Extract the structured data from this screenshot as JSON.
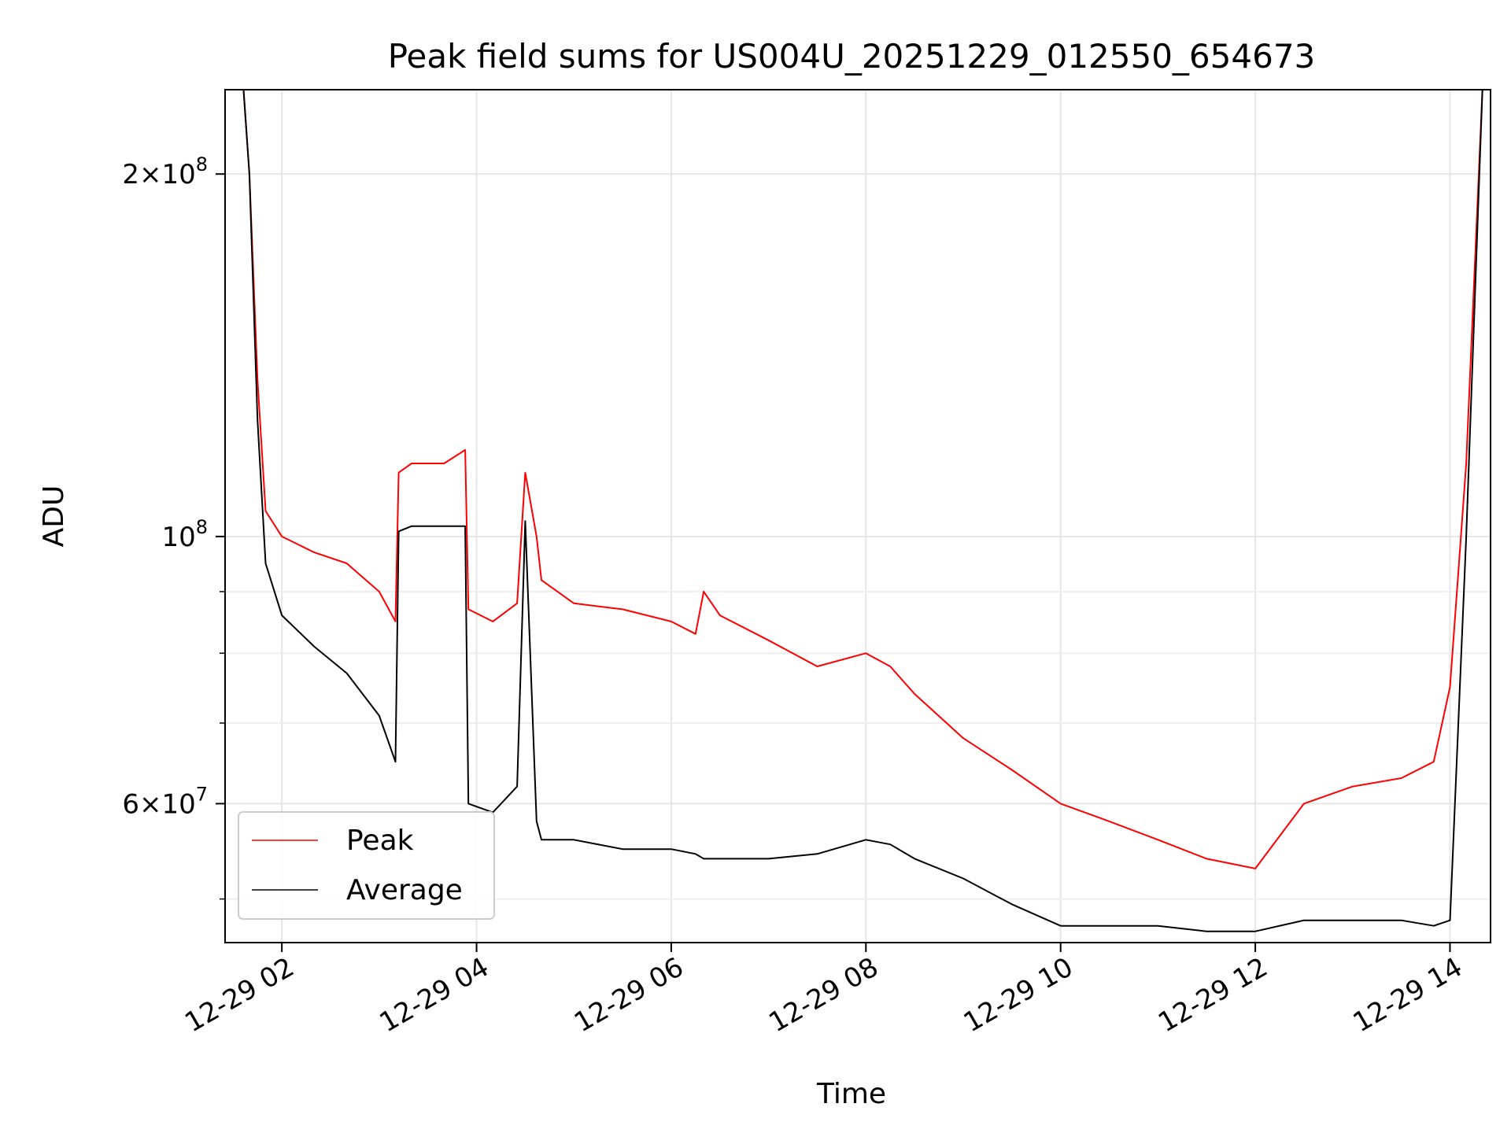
{
  "chart_data": {
    "type": "line",
    "title": "Peak field sums for US004U_20251229_012550_654673",
    "xlabel": "Time",
    "ylabel": "ADU",
    "y_scale": "log",
    "ylim": [
      46000000,
      235000000
    ],
    "xlim": [
      "2025-12-29T01:25:00",
      "2025-12-29T14:25:00"
    ],
    "grid": true,
    "legend_position": "lower-left",
    "x_ticks": [
      {
        "t": "2025-12-29T02:00:00",
        "label": "12-29 02"
      },
      {
        "t": "2025-12-29T04:00:00",
        "label": "12-29 04"
      },
      {
        "t": "2025-12-29T06:00:00",
        "label": "12-29 06"
      },
      {
        "t": "2025-12-29T08:00:00",
        "label": "12-29 08"
      },
      {
        "t": "2025-12-29T10:00:00",
        "label": "12-29 10"
      },
      {
        "t": "2025-12-29T12:00:00",
        "label": "12-29 12"
      },
      {
        "t": "2025-12-29T14:00:00",
        "label": "12-29 14"
      }
    ],
    "y_major_ticks": [
      {
        "v": 60000000,
        "mantissa": "6",
        "exp": "7"
      },
      {
        "v": 100000000,
        "mantissa": "",
        "exp": "8"
      },
      {
        "v": 200000000,
        "mantissa": "2",
        "exp": "8"
      }
    ],
    "y_minor_ticks": [
      50000000,
      70000000,
      80000000,
      90000000
    ],
    "series": [
      {
        "name": "Peak",
        "color": "#ff0000",
        "x": [
          "2025-12-29T01:35:00",
          "2025-12-29T01:40:00",
          "2025-12-29T01:45:00",
          "2025-12-29T01:50:00",
          "2025-12-29T02:00:00",
          "2025-12-29T02:20:00",
          "2025-12-29T02:40:00",
          "2025-12-29T03:00:00",
          "2025-12-29T03:10:00",
          "2025-12-29T03:12:00",
          "2025-12-29T03:20:00",
          "2025-12-29T03:40:00",
          "2025-12-29T03:53:00",
          "2025-12-29T03:55:00",
          "2025-12-29T04:10:00",
          "2025-12-29T04:25:00",
          "2025-12-29T04:30:00",
          "2025-12-29T04:37:00",
          "2025-12-29T04:40:00",
          "2025-12-29T05:00:00",
          "2025-12-29T05:30:00",
          "2025-12-29T06:00:00",
          "2025-12-29T06:15:00",
          "2025-12-29T06:20:00",
          "2025-12-29T06:30:00",
          "2025-12-29T07:00:00",
          "2025-12-29T07:30:00",
          "2025-12-29T08:00:00",
          "2025-12-29T08:15:00",
          "2025-12-29T08:30:00",
          "2025-12-29T09:00:00",
          "2025-12-29T09:30:00",
          "2025-12-29T10:00:00",
          "2025-12-29T10:30:00",
          "2025-12-29T11:00:00",
          "2025-12-29T11:30:00",
          "2025-12-29T12:00:00",
          "2025-12-29T12:30:00",
          "2025-12-29T13:00:00",
          "2025-12-29T13:30:00",
          "2025-12-29T13:50:00",
          "2025-12-29T14:00:00",
          "2025-12-29T14:10:00",
          "2025-12-29T14:20:00"
        ],
        "y": [
          250000000,
          200000000,
          135000000,
          105000000,
          100000000,
          97000000,
          95000000,
          90000000,
          85000000,
          113000000,
          115000000,
          115000000,
          118000000,
          87000000,
          85000000,
          88000000,
          113000000,
          100000000,
          92000000,
          88000000,
          87000000,
          85000000,
          83000000,
          90000000,
          86000000,
          82000000,
          78000000,
          80000000,
          78000000,
          74000000,
          68000000,
          64000000,
          60000000,
          58000000,
          56000000,
          54000000,
          53000000,
          60000000,
          62000000,
          63000000,
          65000000,
          75000000,
          115000000,
          235000000
        ]
      },
      {
        "name": "Average",
        "color": "#000000",
        "x": [
          "2025-12-29T01:35:00",
          "2025-12-29T01:40:00",
          "2025-12-29T01:45:00",
          "2025-12-29T01:50:00",
          "2025-12-29T02:00:00",
          "2025-12-29T02:20:00",
          "2025-12-29T02:40:00",
          "2025-12-29T03:00:00",
          "2025-12-29T03:10:00",
          "2025-12-29T03:12:00",
          "2025-12-29T03:20:00",
          "2025-12-29T03:40:00",
          "2025-12-29T03:53:00",
          "2025-12-29T03:55:00",
          "2025-12-29T04:10:00",
          "2025-12-29T04:25:00",
          "2025-12-29T04:30:00",
          "2025-12-29T04:37:00",
          "2025-12-29T04:40:00",
          "2025-12-29T05:00:00",
          "2025-12-29T05:30:00",
          "2025-12-29T06:00:00",
          "2025-12-29T06:15:00",
          "2025-12-29T06:20:00",
          "2025-12-29T06:30:00",
          "2025-12-29T07:00:00",
          "2025-12-29T07:30:00",
          "2025-12-29T08:00:00",
          "2025-12-29T08:15:00",
          "2025-12-29T08:30:00",
          "2025-12-29T09:00:00",
          "2025-12-29T09:30:00",
          "2025-12-29T10:00:00",
          "2025-12-29T10:30:00",
          "2025-12-29T11:00:00",
          "2025-12-29T11:30:00",
          "2025-12-29T12:00:00",
          "2025-12-29T12:30:00",
          "2025-12-29T13:00:00",
          "2025-12-29T13:30:00",
          "2025-12-29T13:50:00",
          "2025-12-29T14:00:00",
          "2025-12-29T14:10:00",
          "2025-12-29T14:20:00"
        ],
        "y": [
          250000000,
          200000000,
          125000000,
          95000000,
          86000000,
          81000000,
          77000000,
          71000000,
          65000000,
          101000000,
          102000000,
          102000000,
          102000000,
          60000000,
          59000000,
          62000000,
          103000000,
          58000000,
          56000000,
          56000000,
          55000000,
          55000000,
          54500000,
          54000000,
          54000000,
          54000000,
          54500000,
          56000000,
          55500000,
          54000000,
          52000000,
          49500000,
          47500000,
          47500000,
          47500000,
          47000000,
          47000000,
          48000000,
          48000000,
          48000000,
          47500000,
          48000000,
          100000000,
          235000000
        ]
      }
    ]
  }
}
